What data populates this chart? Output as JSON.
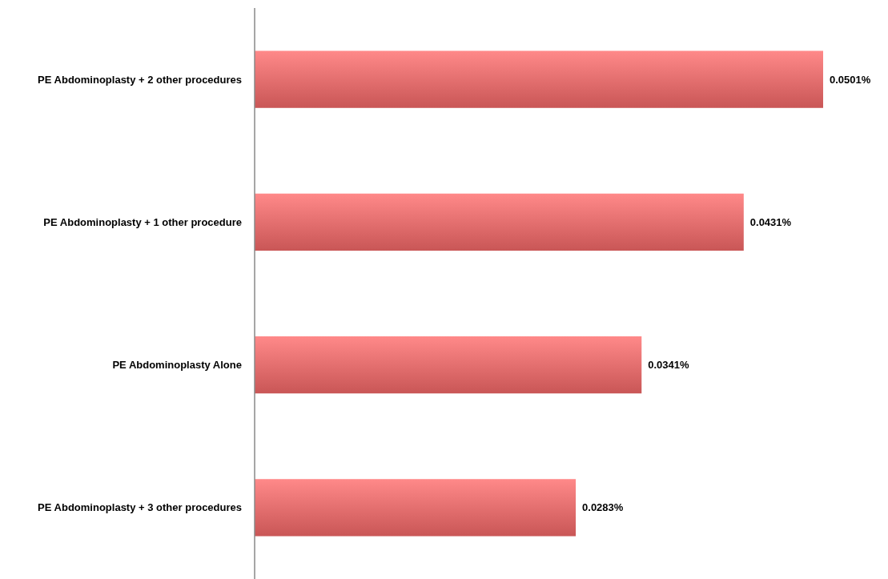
{
  "chart_data": {
    "type": "bar",
    "orientation": "horizontal",
    "categories": [
      "PE Abdominoplasty  + 2 other procedures",
      "PE Abdominoplasty  + 1 other procedure",
      "PE Abdominoplasty  Alone",
      "PE Abdominoplasty  + 3 other procedures"
    ],
    "values": [
      0.0501,
      0.0431,
      0.0341,
      0.0283
    ],
    "value_labels": [
      "0.0501%",
      "0.0431%",
      "0.0341%",
      "0.0283%"
    ],
    "color": "#e06060"
  }
}
